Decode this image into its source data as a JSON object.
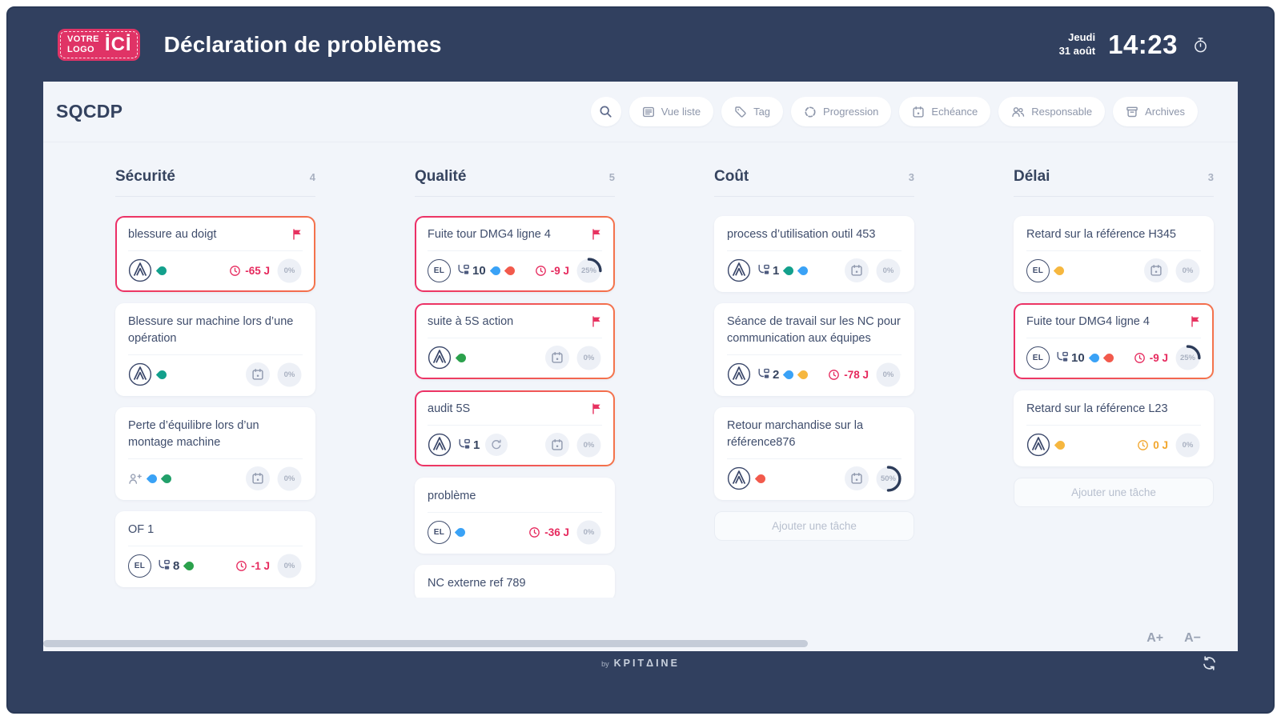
{
  "header": {
    "logo_line1": "VOTRE",
    "logo_line2": "LOGO",
    "logo_big": "İCİ",
    "title": "Déclaration de problèmes",
    "weekday": "Jeudi",
    "date": "31 août",
    "time": "14:23"
  },
  "toolbar": {
    "board_title": "SQCDP",
    "buttons": [
      {
        "icon": "list",
        "label": "Vue liste"
      },
      {
        "icon": "tag",
        "label": "Tag"
      },
      {
        "icon": "progress",
        "label": "Progression"
      },
      {
        "icon": "calendar",
        "label": "Echéance"
      },
      {
        "icon": "users",
        "label": "Responsable"
      },
      {
        "icon": "archive",
        "label": "Archives"
      }
    ]
  },
  "colors": {
    "brand_pink": "#e03366",
    "alert_border_from": "#ec2e67",
    "alert_border_to": "#f4744b",
    "danger": "#e62a5e",
    "warning": "#f2a62c",
    "progress_arc": "#2c3b59",
    "navy": "#31405f"
  },
  "columns": [
    {
      "title": "Sécurité",
      "count": "4",
      "cards": [
        {
          "title": "blessure au doigt",
          "alert": true,
          "flag": true,
          "avatar": "logo",
          "tags": [
            "#13a08c"
          ],
          "due": {
            "text": "-65 J",
            "color": "#e62a5e"
          },
          "progress": {
            "value": 0,
            "label": "0%"
          }
        },
        {
          "title": "Blessure sur machine lors d’une opération",
          "avatar": "logo",
          "tags": [
            "#13a08c"
          ],
          "calendar": true,
          "progress": {
            "value": 0,
            "label": "0%"
          }
        },
        {
          "title": "Perte d’équilibre lors d’un montage machine",
          "avatar": "user-add",
          "tags": [
            "#3aa2f6",
            "#22a06a"
          ],
          "calendar": true,
          "progress": {
            "value": 0,
            "label": "0%"
          }
        },
        {
          "title": "OF 1",
          "avatar": "initials",
          "initials": "EL",
          "subtasks": "8",
          "tags": [
            "#2ba14c"
          ],
          "due": {
            "text": "-1 J",
            "color": "#e62a5e"
          },
          "progress": {
            "value": 0,
            "label": "0%"
          }
        }
      ]
    },
    {
      "title": "Qualité",
      "count": "5",
      "cards": [
        {
          "title": "Fuite tour DMG4 ligne 4",
          "alert": true,
          "flag": true,
          "avatar": "initials",
          "initials": "EL",
          "subtasks": "10",
          "tags": [
            "#3aa2f6",
            "#f25a4c"
          ],
          "due": {
            "text": "-9 J",
            "color": "#e62a5e"
          },
          "progress": {
            "value": 25,
            "label": "25%"
          }
        },
        {
          "title": "suite à 5S action",
          "alert": true,
          "flag": true,
          "avatar": "logo",
          "tags": [
            "#2ba14c"
          ],
          "calendar": true,
          "progress": {
            "value": 0,
            "label": "0%"
          }
        },
        {
          "title": "audit 5S",
          "alert": true,
          "flag": true,
          "avatar": "logo",
          "subtasks": "1",
          "repeat": true,
          "calendar": true,
          "progress": {
            "value": 0,
            "label": "0%"
          }
        },
        {
          "title": "problème",
          "avatar": "initials",
          "initials": "EL",
          "tags": [
            "#3aa2f6"
          ],
          "due": {
            "text": "-36 J",
            "color": "#e62a5e"
          },
          "progress": {
            "value": 0,
            "label": "0%"
          }
        },
        {
          "title": "NC externe ref 789",
          "minimal": true
        }
      ]
    },
    {
      "title": "Coût",
      "count": "3",
      "add_label": "Ajouter une tâche",
      "cards": [
        {
          "title": "process d’utilisation outil 453",
          "avatar": "logo",
          "subtasks": "1",
          "tags": [
            "#13a08c",
            "#3aa2f6"
          ],
          "calendar": true,
          "progress": {
            "value": 0,
            "label": "0%"
          }
        },
        {
          "title": "Séance de travail sur les NC pour communication aux équipes",
          "avatar": "logo",
          "subtasks": "2",
          "tags": [
            "#3aa2f6",
            "#f6b73f"
          ],
          "due": {
            "text": "-78 J",
            "color": "#e62a5e"
          },
          "progress": {
            "value": 0,
            "label": "0%"
          }
        },
        {
          "title": "Retour marchandise sur la référence876",
          "avatar": "logo",
          "tags": [
            "#f25a4c"
          ],
          "calendar": true,
          "progress": {
            "value": 50,
            "label": "50%"
          }
        }
      ]
    },
    {
      "title": "Délai",
      "count": "3",
      "add_label": "Ajouter une tâche",
      "cards": [
        {
          "title": "Retard sur la référence H345",
          "avatar": "initials",
          "initials": "EL",
          "tags": [
            "#f6b73f"
          ],
          "calendar": true,
          "progress": {
            "value": 0,
            "label": "0%"
          }
        },
        {
          "title": "Fuite tour DMG4 ligne 4",
          "alert": true,
          "flag": true,
          "avatar": "initials",
          "initials": "EL",
          "subtasks": "10",
          "tags": [
            "#3aa2f6",
            "#f25a4c"
          ],
          "due": {
            "text": "-9 J",
            "color": "#e62a5e"
          },
          "progress": {
            "value": 25,
            "label": "25%"
          }
        },
        {
          "title": "Retard sur la référence L23",
          "avatar": "logo",
          "tags": [
            "#f6b73f"
          ],
          "due": {
            "text": "0 J",
            "color": "#f2a62c"
          },
          "progress": {
            "value": 0,
            "label": "0%"
          }
        }
      ]
    }
  ],
  "view_controls": {
    "font_increase": "A+",
    "font_decrease": "A−"
  },
  "page_footer": {
    "brand_by": "by",
    "brand": "KPITΔINE"
  }
}
